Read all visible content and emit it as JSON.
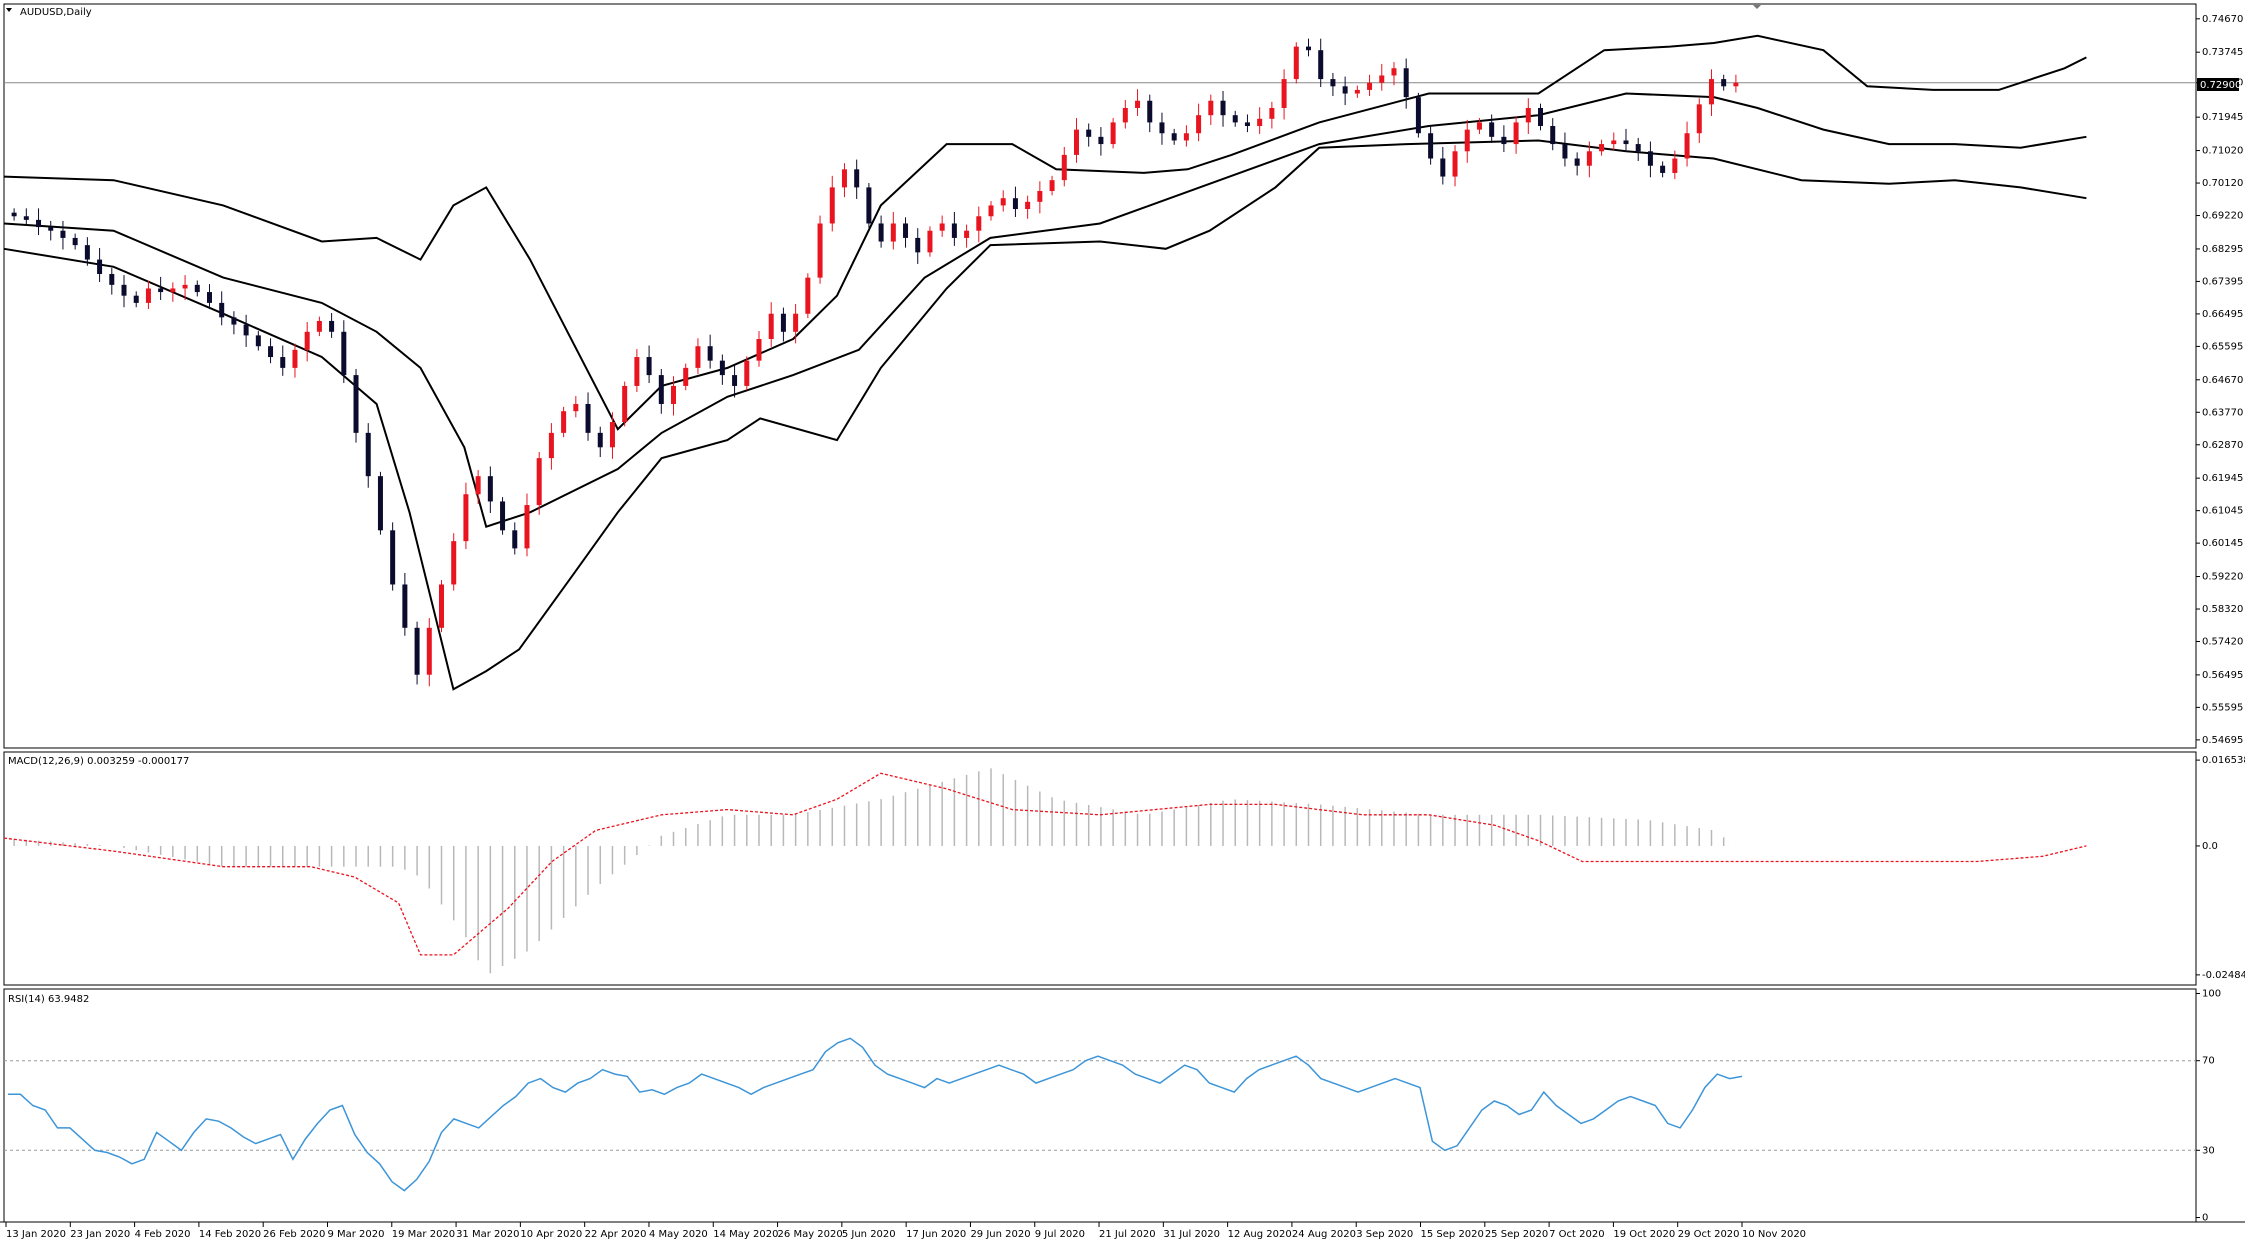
{
  "symbol_label": "AUDUSD,Daily",
  "current_price": "0.72900",
  "colors": {
    "bull": "#e8141f",
    "bear": "#0b0b2e",
    "band": "#000000",
    "signal": "#e8141f",
    "rsi": "#3d95d8",
    "grid": "#9a9a9a"
  },
  "chart_data": [
    {
      "type": "candlestick",
      "y_ticks": [
        "0.74670",
        "0.73745",
        "0.72900",
        "0.71945",
        "0.71020",
        "0.70120",
        "0.69220",
        "0.68295",
        "0.67395",
        "0.66495",
        "0.65595",
        "0.64670",
        "0.63770",
        "0.62870",
        "0.61945",
        "0.61045",
        "0.60145",
        "0.59220",
        "0.58320",
        "0.57420",
        "0.56495",
        "0.55595",
        "0.54695"
      ],
      "ylim": [
        0.5447,
        0.7508
      ],
      "horizontal_line": 0.729,
      "x_ticks": [
        "13 Jan 2020",
        "23 Jan 2020",
        "4 Feb 2020",
        "14 Feb 2020",
        "26 Feb 2020",
        "9 Mar 2020",
        "19 Mar 2020",
        "31 Mar 2020",
        "10 Apr 2020",
        "22 Apr 2020",
        "4 May 2020",
        "14 May 2020",
        "26 May 2020",
        "5 Jun 2020",
        "17 Jun 2020",
        "29 Jun 2020",
        "9 Jul 2020",
        "21 Jul 2020",
        "31 Jul 2020",
        "12 Aug 2020",
        "24 Aug 2020",
        "3 Sep 2020",
        "15 Sep 2020",
        "25 Sep 2020",
        "7 Oct 2020",
        "19 Oct 2020",
        "29 Oct 2020",
        "10 Nov 2020"
      ],
      "close_path": [
        0.692,
        0.691,
        0.689,
        0.688,
        0.686,
        0.684,
        0.68,
        0.676,
        0.673,
        0.67,
        0.668,
        0.672,
        0.671,
        0.672,
        0.673,
        0.671,
        0.668,
        0.664,
        0.662,
        0.659,
        0.656,
        0.653,
        0.65,
        0.655,
        0.66,
        0.663,
        0.66,
        0.648,
        0.632,
        0.62,
        0.605,
        0.59,
        0.578,
        0.565,
        0.578,
        0.59,
        0.602,
        0.615,
        0.62,
        0.613,
        0.605,
        0.6,
        0.612,
        0.625,
        0.632,
        0.638,
        0.64,
        0.632,
        0.628,
        0.635,
        0.645,
        0.653,
        0.648,
        0.64,
        0.645,
        0.65,
        0.656,
        0.652,
        0.648,
        0.645,
        0.652,
        0.658,
        0.665,
        0.66,
        0.665,
        0.675,
        0.69,
        0.7,
        0.705,
        0.7,
        0.69,
        0.685,
        0.69,
        0.686,
        0.682,
        0.688,
        0.69,
        0.686,
        0.688,
        0.692,
        0.695,
        0.697,
        0.694,
        0.696,
        0.699,
        0.702,
        0.709,
        0.716,
        0.714,
        0.712,
        0.718,
        0.722,
        0.724,
        0.718,
        0.715,
        0.713,
        0.715,
        0.72,
        0.724,
        0.72,
        0.718,
        0.717,
        0.719,
        0.722,
        0.73,
        0.739,
        0.738,
        0.73,
        0.728,
        0.726,
        0.727,
        0.729,
        0.731,
        0.733,
        0.725,
        0.715,
        0.708,
        0.703,
        0.71,
        0.716,
        0.718,
        0.714,
        0.712,
        0.718,
        0.722,
        0.717,
        0.712,
        0.708,
        0.706,
        0.71,
        0.712,
        0.713,
        0.712,
        0.71,
        0.706,
        0.704,
        0.708,
        0.715,
        0.723,
        0.73,
        0.728,
        0.729
      ],
      "series": [
        {
          "name": "",
          "bollinger": {
            "upper": [
              [
                0,
                0.703
              ],
              [
                0.05,
                0.702
              ],
              [
                0.1,
                0.695
              ],
              [
                0.145,
                0.685
              ],
              [
                0.17,
                0.686
              ],
              [
                0.19,
                0.68
              ],
              [
                0.205,
                0.695
              ],
              [
                0.22,
                0.7
              ],
              [
                0.24,
                0.68
              ],
              [
                0.28,
                0.633
              ],
              [
                0.3,
                0.645
              ],
              [
                0.33,
                0.65
              ],
              [
                0.36,
                0.658
              ],
              [
                0.38,
                0.67
              ],
              [
                0.4,
                0.695
              ],
              [
                0.43,
                0.712
              ],
              [
                0.46,
                0.712
              ],
              [
                0.48,
                0.705
              ],
              [
                0.52,
                0.704
              ],
              [
                0.54,
                0.705
              ],
              [
                0.56,
                0.709
              ],
              [
                0.6,
                0.718
              ],
              [
                0.65,
                0.726
              ],
              [
                0.7,
                0.726
              ],
              [
                0.73,
                0.738
              ],
              [
                0.76,
                0.739
              ],
              [
                0.78,
                0.74
              ],
              [
                0.8,
                0.742
              ],
              [
                0.83,
                0.738
              ],
              [
                0.85,
                0.728
              ],
              [
                0.88,
                0.727
              ],
              [
                0.91,
                0.727
              ],
              [
                0.94,
                0.733
              ],
              [
                0.95,
                0.736
              ]
            ],
            "middle": [
              [
                0,
                0.69
              ],
              [
                0.05,
                0.688
              ],
              [
                0.1,
                0.675
              ],
              [
                0.145,
                0.668
              ],
              [
                0.17,
                0.66
              ],
              [
                0.19,
                0.65
              ],
              [
                0.21,
                0.628
              ],
              [
                0.22,
                0.606
              ],
              [
                0.24,
                0.61
              ],
              [
                0.28,
                0.622
              ],
              [
                0.3,
                0.632
              ],
              [
                0.33,
                0.642
              ],
              [
                0.36,
                0.648
              ],
              [
                0.39,
                0.655
              ],
              [
                0.42,
                0.675
              ],
              [
                0.45,
                0.686
              ],
              [
                0.5,
                0.69
              ],
              [
                0.55,
                0.701
              ],
              [
                0.6,
                0.712
              ],
              [
                0.65,
                0.717
              ],
              [
                0.7,
                0.72
              ],
              [
                0.74,
                0.726
              ],
              [
                0.78,
                0.725
              ],
              [
                0.8,
                0.722
              ],
              [
                0.83,
                0.716
              ],
              [
                0.86,
                0.712
              ],
              [
                0.89,
                0.712
              ],
              [
                0.92,
                0.711
              ],
              [
                0.95,
                0.714
              ]
            ],
            "lower": [
              [
                0,
                0.683
              ],
              [
                0.05,
                0.678
              ],
              [
                0.1,
                0.665
              ],
              [
                0.145,
                0.653
              ],
              [
                0.17,
                0.64
              ],
              [
                0.185,
                0.61
              ],
              [
                0.205,
                0.561
              ],
              [
                0.22,
                0.566
              ],
              [
                0.235,
                0.572
              ],
              [
                0.26,
                0.593
              ],
              [
                0.28,
                0.61
              ],
              [
                0.3,
                0.625
              ],
              [
                0.33,
                0.63
              ],
              [
                0.345,
                0.636
              ],
              [
                0.38,
                0.63
              ],
              [
                0.4,
                0.65
              ],
              [
                0.43,
                0.672
              ],
              [
                0.45,
                0.684
              ],
              [
                0.5,
                0.685
              ],
              [
                0.53,
                0.683
              ],
              [
                0.55,
                0.688
              ],
              [
                0.58,
                0.7
              ],
              [
                0.6,
                0.711
              ],
              [
                0.64,
                0.712
              ],
              [
                0.7,
                0.713
              ],
              [
                0.74,
                0.71
              ],
              [
                0.78,
                0.708
              ],
              [
                0.82,
                0.702
              ],
              [
                0.86,
                0.701
              ],
              [
                0.89,
                0.702
              ],
              [
                0.92,
                0.7
              ],
              [
                0.95,
                0.697
              ]
            ]
          }
        }
      ]
    },
    {
      "type": "bar",
      "title": "MACD(12,26,9) 0.003259 -0.000177",
      "y_ticks": [
        "0.016538",
        "0.0",
        "-0.024849"
      ],
      "ylim": [
        -0.0268,
        0.0181
      ],
      "series": [
        {
          "name": "",
          "style": "histogram",
          "values_path": [
            [
              0,
              0.0015
            ],
            [
              0.05,
              0.0
            ],
            [
              0.1,
              -0.004
            ],
            [
              0.15,
              -0.004
            ],
            [
              0.18,
              -0.004
            ],
            [
              0.19,
              -0.006
            ],
            [
              0.21,
              -0.017
            ],
            [
              0.22,
              -0.025
            ],
            [
              0.24,
              -0.02
            ],
            [
              0.27,
              -0.008
            ],
            [
              0.3,
              0.002
            ],
            [
              0.33,
              0.006
            ],
            [
              0.36,
              0.006
            ],
            [
              0.4,
              0.009
            ],
            [
              0.45,
              0.015
            ],
            [
              0.48,
              0.009
            ],
            [
              0.52,
              0.006
            ],
            [
              0.56,
              0.009
            ],
            [
              0.6,
              0.008
            ],
            [
              0.65,
              0.006
            ],
            [
              0.7,
              0.006
            ],
            [
              0.75,
              0.005
            ],
            [
              0.78,
              0.003
            ],
            [
              0.8,
              -0.003
            ],
            [
              0.82,
              -0.004
            ],
            [
              0.86,
              -0.003
            ],
            [
              0.9,
              -0.003
            ],
            [
              0.94,
              0.001
            ],
            [
              0.95,
              0.003
            ]
          ]
        },
        {
          "name": "",
          "style": "signal",
          "values_path": [
            [
              0,
              0.0015
            ],
            [
              0.05,
              -0.001
            ],
            [
              0.1,
              -0.004
            ],
            [
              0.14,
              -0.004
            ],
            [
              0.16,
              -0.006
            ],
            [
              0.18,
              -0.011
            ],
            [
              0.19,
              -0.021
            ],
            [
              0.205,
              -0.021
            ],
            [
              0.23,
              -0.012
            ],
            [
              0.25,
              -0.003
            ],
            [
              0.27,
              0.003
            ],
            [
              0.3,
              0.006
            ],
            [
              0.33,
              0.007
            ],
            [
              0.36,
              0.006
            ],
            [
              0.38,
              0.009
            ],
            [
              0.4,
              0.014
            ],
            [
              0.43,
              0.011
            ],
            [
              0.46,
              0.007
            ],
            [
              0.5,
              0.006
            ],
            [
              0.55,
              0.008
            ],
            [
              0.58,
              0.008
            ],
            [
              0.62,
              0.006
            ],
            [
              0.65,
              0.006
            ],
            [
              0.68,
              0.004
            ],
            [
              0.7,
              0.001
            ],
            [
              0.72,
              -0.003
            ],
            [
              0.75,
              -0.003
            ],
            [
              0.8,
              -0.003
            ],
            [
              0.83,
              -0.003
            ],
            [
              0.86,
              -0.003
            ],
            [
              0.9,
              -0.003
            ],
            [
              0.93,
              -0.002
            ],
            [
              0.95,
              -0.0
            ]
          ]
        }
      ]
    },
    {
      "type": "line",
      "title": "RSI(14) 63.9482",
      "y_ticks": [
        "100",
        "70",
        "30",
        "0"
      ],
      "ylim": [
        -2,
        102
      ],
      "reference_lines": [
        70,
        30
      ],
      "series": [
        {
          "name": "",
          "values": [
            55,
            55,
            50,
            48,
            40,
            40,
            35,
            30,
            29,
            27,
            24,
            26,
            38,
            34,
            30,
            38,
            44,
            43,
            40,
            36,
            33,
            35,
            37,
            26,
            35,
            42,
            48,
            50,
            37,
            29,
            24,
            16,
            12,
            17,
            25,
            38,
            44,
            42,
            40,
            45,
            50,
            54,
            60,
            62,
            58,
            56,
            60,
            62,
            66,
            64,
            63,
            56,
            57,
            55,
            58,
            60,
            64,
            62,
            60,
            58,
            55,
            58,
            60,
            62,
            64,
            66,
            74,
            78,
            80,
            76,
            68,
            64,
            62,
            60,
            58,
            62,
            60,
            62,
            64,
            66,
            68,
            66,
            64,
            60,
            62,
            64,
            66,
            70,
            72,
            70,
            68,
            64,
            62,
            60,
            64,
            68,
            66,
            60,
            58,
            56,
            62,
            66,
            68,
            70,
            72,
            68,
            62,
            60,
            58,
            56,
            58,
            60,
            62,
            60,
            58,
            34,
            30,
            32,
            40,
            48,
            52,
            50,
            46,
            48,
            56,
            50,
            46,
            42,
            44,
            48,
            52,
            54,
            52,
            50,
            42,
            40,
            48,
            58,
            64,
            62,
            63
          ]
        }
      ]
    }
  ]
}
